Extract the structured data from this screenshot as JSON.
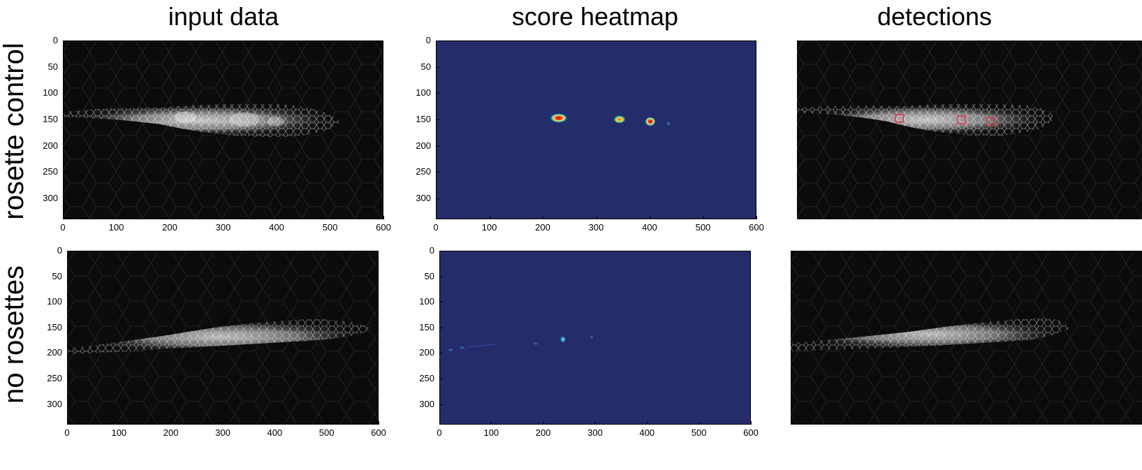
{
  "columns": [
    {
      "title": "input data"
    },
    {
      "title": "score heatmap"
    },
    {
      "title": "detections"
    }
  ],
  "rows": [
    {
      "title": "rosette control"
    },
    {
      "title": "no rosettes"
    }
  ],
  "axes": {
    "x_ticks": [
      "0",
      "100",
      "200",
      "300",
      "400",
      "500",
      "600"
    ],
    "y_ticks": [
      "0",
      "50",
      "100",
      "150",
      "200",
      "250",
      "300"
    ],
    "x_range": [
      0,
      600
    ],
    "y_range": [
      0,
      340
    ]
  },
  "colors": {
    "heatmap_background": "#252c6a",
    "detection_box": "#e0394b",
    "image_background": "#0b0b0b"
  },
  "detections": {
    "rosette_control": [
      {
        "x": 190,
        "y": 148
      },
      {
        "x": 305,
        "y": 151
      },
      {
        "x": 360,
        "y": 154
      }
    ]
  }
}
